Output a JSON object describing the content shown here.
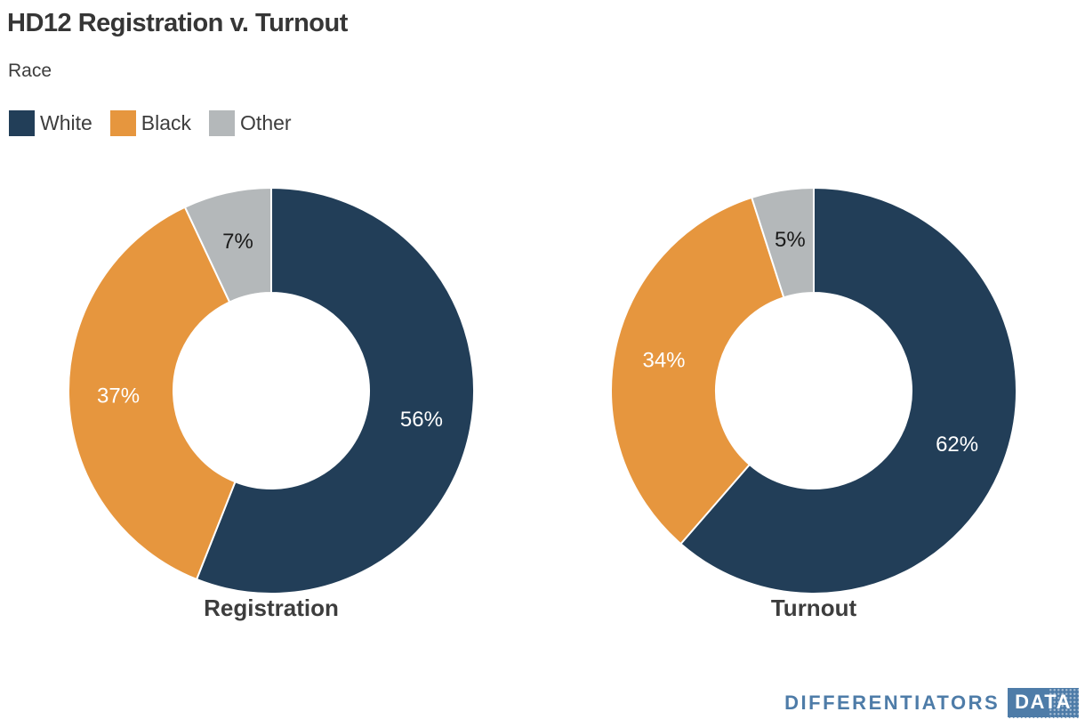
{
  "title": "HD12 Registration v. Turnout",
  "subtitle": "Race",
  "legend": {
    "items": [
      {
        "label": "White",
        "color": "#223e58"
      },
      {
        "label": "Black",
        "color": "#e6963e"
      },
      {
        "label": "Other",
        "color": "#b4b8ba"
      }
    ]
  },
  "chart_data": [
    {
      "type": "pie",
      "subtype": "donut",
      "title": "Registration",
      "categories": [
        "White",
        "Black",
        "Other"
      ],
      "values": [
        56,
        37,
        7
      ],
      "unit": "%",
      "data_labels": [
        "56%",
        "37%",
        "7%"
      ],
      "slice_colors": [
        "#223e58",
        "#e6963e",
        "#b4b8ba"
      ],
      "label_colors": [
        "#ffffff",
        "#ffffff",
        "#1a1a1a"
      ],
      "start_angle_deg": 0,
      "direction": "clockwise",
      "legend_position": "top-left"
    },
    {
      "type": "pie",
      "subtype": "donut",
      "title": "Turnout",
      "categories": [
        "White",
        "Black",
        "Other"
      ],
      "values": [
        62,
        34,
        5
      ],
      "unit": "%",
      "data_labels": [
        "62%",
        "34%",
        "5%"
      ],
      "slice_colors": [
        "#223e58",
        "#e6963e",
        "#b4b8ba"
      ],
      "label_colors": [
        "#ffffff",
        "#ffffff",
        "#1a1a1a"
      ],
      "start_angle_deg": 0,
      "direction": "clockwise",
      "legend_position": "top-left"
    }
  ],
  "footer": {
    "brand": "DIFFERENTIATORS",
    "badge": "DATA",
    "brand_color": "#4e7ca8"
  }
}
